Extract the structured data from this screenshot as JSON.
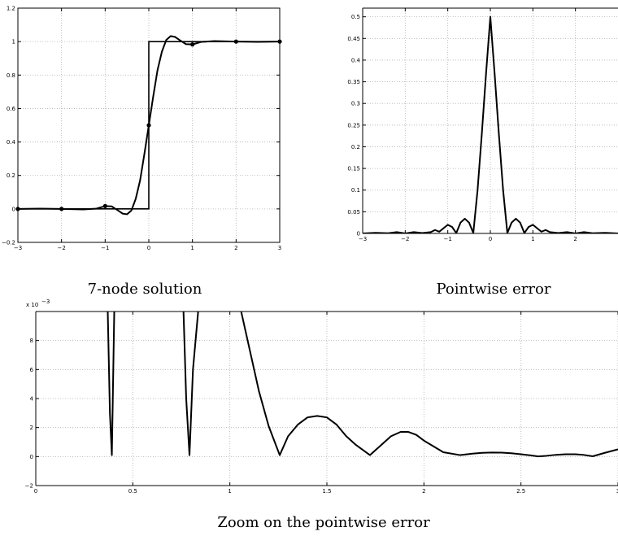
{
  "chart_data": [
    {
      "type": "line",
      "caption": "7-node solution",
      "xlim": [
        -3,
        3
      ],
      "ylim": [
        -0.2,
        1.2
      ],
      "xticks": [
        -3,
        -2,
        -1,
        0,
        1,
        2,
        3
      ],
      "yticks": [
        -0.2,
        0,
        0.2,
        0.4,
        0.6,
        0.8,
        1,
        1.2
      ],
      "xtick_labels": [
        "−3",
        "−2",
        "−1",
        "0",
        "1",
        "2",
        "3"
      ],
      "ytick_labels": [
        "−0.2",
        "0",
        "0.2",
        "0.4",
        "0.6",
        "0.8",
        "1",
        "1.2"
      ],
      "grid": true,
      "series": [
        {
          "kind": "step",
          "x": [
            -3,
            0,
            0,
            3
          ],
          "y": [
            0,
            0,
            1,
            1
          ]
        },
        {
          "kind": "curve",
          "x": [
            -3,
            -2.5,
            -2,
            -1.5,
            -1.2,
            -1,
            -0.85,
            -0.7,
            -0.6,
            -0.5,
            -0.4,
            -0.3,
            -0.2,
            -0.1,
            0,
            0.1,
            0.2,
            0.3,
            0.4,
            0.5,
            0.6,
            0.7,
            0.85,
            1,
            1.2,
            1.5,
            2,
            2.5,
            3
          ],
          "y": [
            0,
            0.002,
            0,
            -0.003,
            0.002,
            0.017,
            0.015,
            -0.01,
            -0.028,
            -0.032,
            -0.01,
            0.06,
            0.17,
            0.33,
            0.5,
            0.67,
            0.83,
            0.94,
            1.01,
            1.033,
            1.028,
            1.01,
            0.985,
            0.983,
            0.998,
            1.003,
            1,
            0.998,
            1
          ]
        }
      ],
      "nodes": {
        "x": [
          -3,
          -2,
          -1,
          0,
          1,
          2,
          3
        ],
        "y": [
          0,
          0,
          0.017,
          0.5,
          0.983,
          1,
          1
        ]
      }
    },
    {
      "type": "line",
      "caption": "Pointwise error",
      "xlim": [
        -3,
        3
      ],
      "ylim": [
        0,
        0.52
      ],
      "xticks": [
        -3,
        -2,
        -1,
        0,
        1,
        2
      ],
      "yticks": [
        0,
        0.05,
        0.1,
        0.15,
        0.2,
        0.25,
        0.3,
        0.35,
        0.4,
        0.45,
        0.5
      ],
      "xtick_labels": [
        "−3",
        "−2",
        "−1",
        "0",
        "1",
        "2"
      ],
      "ytick_labels": [
        "0",
        "0.05",
        "0.1",
        "0.15",
        "0.2",
        "0.25",
        "0.3",
        "0.35",
        "0.4",
        "0.45",
        "0.5"
      ],
      "grid": true,
      "series": [
        {
          "kind": "curve",
          "x": [
            -3,
            -2.7,
            -2.4,
            -2.2,
            -2,
            -1.8,
            -1.6,
            -1.4,
            -1.3,
            -1.2,
            -1.1,
            -1.0,
            -0.9,
            -0.8,
            -0.7,
            -0.6,
            -0.5,
            -0.4,
            -0.3,
            -0.2,
            -0.1,
            0,
            0.1,
            0.2,
            0.3,
            0.4,
            0.5,
            0.6,
            0.7,
            0.8,
            0.9,
            1.0,
            1.1,
            1.2,
            1.3,
            1.4,
            1.6,
            1.8,
            2,
            2.2,
            2.4,
            2.7,
            3
          ],
          "y": [
            0,
            0.0015,
            0.0005,
            0.003,
            0.0,
            0.003,
            0.001,
            0.003,
            0.008,
            0.004,
            0.012,
            0.02,
            0.015,
            0.001,
            0.025,
            0.034,
            0.025,
            0.001,
            0.1,
            0.23,
            0.37,
            0.5,
            0.37,
            0.23,
            0.1,
            0.001,
            0.025,
            0.034,
            0.025,
            0.001,
            0.015,
            0.02,
            0.012,
            0.004,
            0.008,
            0.003,
            0.001,
            0.003,
            0.0,
            0.003,
            0.0005,
            0.0015,
            0
          ]
        }
      ]
    },
    {
      "type": "line",
      "caption": "Zoom on the pointwise error",
      "xlim": [
        0,
        3
      ],
      "ylim": [
        -0.002,
        0.01
      ],
      "y_multiplier_label": "x 10",
      "y_multiplier_exponent": "−3",
      "xticks": [
        0,
        0.5,
        1,
        1.5,
        2,
        2.5,
        3
      ],
      "yticks": [
        -0.002,
        0,
        0.002,
        0.004,
        0.006,
        0.008
      ],
      "xtick_labels": [
        "0",
        "0.5",
        "1",
        "1.5",
        "2",
        "2.5",
        "3"
      ],
      "ytick_labels": [
        "−2",
        "0",
        "2",
        "4",
        "6",
        "8"
      ],
      "grid": true,
      "series": [
        {
          "kind": "curve",
          "x": [
            0.37,
            0.382,
            0.392,
            0.405,
            0.76,
            0.775,
            0.792,
            0.81,
            0.84,
            1.05,
            1.1,
            1.15,
            1.2,
            1.257,
            1.3,
            1.35,
            1.4,
            1.45,
            1.5,
            1.55,
            1.6,
            1.65,
            1.722,
            1.78,
            1.83,
            1.88,
            1.92,
            1.96,
            2.0,
            2.05,
            2.1,
            2.187,
            2.25,
            2.3,
            2.35,
            2.4,
            2.45,
            2.5,
            2.55,
            2.588,
            2.63,
            2.68,
            2.73,
            2.78,
            2.82,
            2.87,
            2.93,
            3.0
          ],
          "y": [
            0.0105,
            0.003,
            0.0001,
            0.0105,
            0.0105,
            0.004,
            0.0001,
            0.006,
            0.0105,
            0.0105,
            0.0075,
            0.0045,
            0.0021,
            0.0001,
            0.0014,
            0.0022,
            0.0027,
            0.0028,
            0.0027,
            0.0022,
            0.0014,
            0.0008,
            0.0001,
            0.0008,
            0.0014,
            0.0017,
            0.0017,
            0.0015,
            0.0011,
            0.0007,
            0.0003,
            0.0001,
            0.0002,
            0.00026,
            0.00028,
            0.00027,
            0.00023,
            0.00016,
            8e-05,
            1e-05,
            5e-05,
            0.00012,
            0.00016,
            0.00016,
            0.00012,
            2e-05,
            0.00025,
            0.0005
          ]
        }
      ]
    }
  ]
}
